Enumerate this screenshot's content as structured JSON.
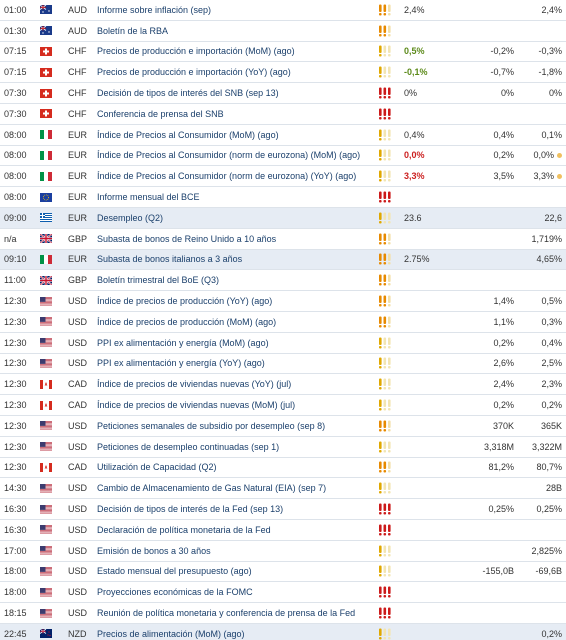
{
  "colors": {
    "event_link": "#1a3f6b",
    "highlight_row": "#e6ecf4",
    "positive": "#5c8a1a",
    "negative": "#cc2020",
    "impact_high": "#cc1a1a",
    "impact_medium": "#e78a00",
    "impact_low": "#e0a800"
  },
  "rows": [
    {
      "time": "01:00",
      "flag": "au",
      "currency": "AUD",
      "event": "Informe sobre inflación (sep)",
      "impact": "medium",
      "actual": "2,4%",
      "actual_style": "",
      "forecast": "",
      "previous": "2,4%",
      "prev_dot": false,
      "hl": false
    },
    {
      "time": "01:30",
      "flag": "au",
      "currency": "AUD",
      "event": "Boletín de la RBA",
      "impact": "medium",
      "actual": "",
      "actual_style": "",
      "forecast": "",
      "previous": "",
      "prev_dot": false,
      "hl": false
    },
    {
      "time": "07:15",
      "flag": "ch",
      "currency": "CHF",
      "event": "Precios de producción e importación (MoM) (ago)",
      "impact": "low",
      "actual": "0,5%",
      "actual_style": "pos",
      "forecast": "-0,2%",
      "previous": "-0,3%",
      "prev_dot": false,
      "hl": false
    },
    {
      "time": "07:15",
      "flag": "ch",
      "currency": "CHF",
      "event": "Precios de producción e importación (YoY) (ago)",
      "impact": "low",
      "actual": "-0,1%",
      "actual_style": "pos",
      "forecast": "-0,7%",
      "previous": "-1,8%",
      "prev_dot": false,
      "hl": false
    },
    {
      "time": "07:30",
      "flag": "ch",
      "currency": "CHF",
      "event": "Decisión de tipos de interés del SNB (sep 13)",
      "impact": "high",
      "actual": "0%",
      "actual_style": "",
      "forecast": "0%",
      "previous": "0%",
      "prev_dot": false,
      "hl": false
    },
    {
      "time": "07:30",
      "flag": "ch",
      "currency": "CHF",
      "event": "Conferencia de prensa del SNB",
      "impact": "high",
      "actual": "",
      "actual_style": "",
      "forecast": "",
      "previous": "",
      "prev_dot": false,
      "hl": false
    },
    {
      "time": "08:00",
      "flag": "it",
      "currency": "EUR",
      "event": "Índice de Precios al Consumidor (MoM) (ago)",
      "impact": "low",
      "actual": "0,4%",
      "actual_style": "",
      "forecast": "0,4%",
      "previous": "0,1%",
      "prev_dot": false,
      "hl": false
    },
    {
      "time": "08:00",
      "flag": "it",
      "currency": "EUR",
      "event": "Índice de Precios al Consumidor (norm de eurozona) (MoM) (ago)",
      "impact": "low",
      "actual": "0,0%",
      "actual_style": "neg",
      "forecast": "0,2%",
      "previous": "0,0%",
      "prev_dot": true,
      "hl": false
    },
    {
      "time": "08:00",
      "flag": "it",
      "currency": "EUR",
      "event": "Índice de Precios al Consumidor (norm de eurozona) (YoY) (ago)",
      "impact": "low",
      "actual": "3,3%",
      "actual_style": "neg",
      "forecast": "3,5%",
      "previous": "3,3%",
      "prev_dot": true,
      "hl": false
    },
    {
      "time": "08:00",
      "flag": "eu",
      "currency": "EUR",
      "event": "Informe mensual del BCE",
      "impact": "high",
      "actual": "",
      "actual_style": "",
      "forecast": "",
      "previous": "",
      "prev_dot": false,
      "hl": false
    },
    {
      "time": "09:00",
      "flag": "gr",
      "currency": "EUR",
      "event": "Desempleo (Q2)",
      "impact": "low",
      "actual": "23.6",
      "actual_style": "",
      "forecast": "",
      "previous": "22,6",
      "prev_dot": false,
      "hl": true
    },
    {
      "time": "n/a",
      "flag": "gb",
      "currency": "GBP",
      "event": "Subasta de bonos de Reino Unido a 10 años",
      "impact": "medium",
      "actual": "",
      "actual_style": "",
      "forecast": "",
      "previous": "1,719%",
      "prev_dot": false,
      "hl": false
    },
    {
      "time": "09:10",
      "flag": "it",
      "currency": "EUR",
      "event": "Subasta de bonos italianos a 3 años",
      "impact": "medium",
      "actual": "2.75%",
      "actual_style": "",
      "forecast": "",
      "previous": "4,65%",
      "prev_dot": false,
      "hl": true
    },
    {
      "time": "11:00",
      "flag": "gb",
      "currency": "GBP",
      "event": "Boletín trimestral del BoE (Q3)",
      "impact": "medium",
      "actual": "",
      "actual_style": "",
      "forecast": "",
      "previous": "",
      "prev_dot": false,
      "hl": false
    },
    {
      "time": "12:30",
      "flag": "us",
      "currency": "USD",
      "event": "Índice de precios de producción (YoY) (ago)",
      "impact": "medium",
      "actual": "",
      "actual_style": "",
      "forecast": "1,4%",
      "previous": "0,5%",
      "prev_dot": false,
      "hl": false
    },
    {
      "time": "12:30",
      "flag": "us",
      "currency": "USD",
      "event": "Índice de precios de producción (MoM) (ago)",
      "impact": "medium",
      "actual": "",
      "actual_style": "",
      "forecast": "1,1%",
      "previous": "0,3%",
      "prev_dot": false,
      "hl": false
    },
    {
      "time": "12:30",
      "flag": "us",
      "currency": "USD",
      "event": "PPI ex alimentación y energía (MoM) (ago)",
      "impact": "low",
      "actual": "",
      "actual_style": "",
      "forecast": "0,2%",
      "previous": "0,4%",
      "prev_dot": false,
      "hl": false
    },
    {
      "time": "12:30",
      "flag": "us",
      "currency": "USD",
      "event": "PPI ex alimentación y energía (YoY) (ago)",
      "impact": "low",
      "actual": "",
      "actual_style": "",
      "forecast": "2,6%",
      "previous": "2,5%",
      "prev_dot": false,
      "hl": false
    },
    {
      "time": "12:30",
      "flag": "ca",
      "currency": "CAD",
      "event": "Índice de precios de viviendas nuevas (YoY) (jul)",
      "impact": "low",
      "actual": "",
      "actual_style": "",
      "forecast": "2,4%",
      "previous": "2,3%",
      "prev_dot": false,
      "hl": false
    },
    {
      "time": "12:30",
      "flag": "ca",
      "currency": "CAD",
      "event": "Índice de precios de viviendas nuevas (MoM) (jul)",
      "impact": "low",
      "actual": "",
      "actual_style": "",
      "forecast": "0,2%",
      "previous": "0,2%",
      "prev_dot": false,
      "hl": false
    },
    {
      "time": "12:30",
      "flag": "us",
      "currency": "USD",
      "event": "Peticiones semanales de subsidio por desempleo (sep 8)",
      "impact": "medium",
      "actual": "",
      "actual_style": "",
      "forecast": "370K",
      "previous": "365K",
      "prev_dot": false,
      "hl": false
    },
    {
      "time": "12:30",
      "flag": "us",
      "currency": "USD",
      "event": "Peticiones de desempleo continuadas (sep 1)",
      "impact": "low",
      "actual": "",
      "actual_style": "",
      "forecast": "3,318M",
      "previous": "3,322M",
      "prev_dot": false,
      "hl": false
    },
    {
      "time": "12:30",
      "flag": "ca",
      "currency": "CAD",
      "event": "Utilización de Capacidad (Q2)",
      "impact": "medium",
      "actual": "",
      "actual_style": "",
      "forecast": "81,2%",
      "previous": "80,7%",
      "prev_dot": false,
      "hl": false
    },
    {
      "time": "14:30",
      "flag": "us",
      "currency": "USD",
      "event": "Cambio de Almacenamiento de Gas Natural (EIA) (sep 7)",
      "impact": "low",
      "actual": "",
      "actual_style": "",
      "forecast": "",
      "previous": "28B",
      "prev_dot": false,
      "hl": false
    },
    {
      "time": "16:30",
      "flag": "us",
      "currency": "USD",
      "event": "Decisión de tipos de interés de la Fed (sep 13)",
      "impact": "high",
      "actual": "",
      "actual_style": "",
      "forecast": "0,25%",
      "previous": "0,25%",
      "prev_dot": false,
      "hl": false
    },
    {
      "time": "16:30",
      "flag": "us",
      "currency": "USD",
      "event": "Declaración de política monetaria de la Fed",
      "impact": "high",
      "actual": "",
      "actual_style": "",
      "forecast": "",
      "previous": "",
      "prev_dot": false,
      "hl": false
    },
    {
      "time": "17:00",
      "flag": "us",
      "currency": "USD",
      "event": "Emisión de bonos a 30 años",
      "impact": "low",
      "actual": "",
      "actual_style": "",
      "forecast": "",
      "previous": "2,825%",
      "prev_dot": false,
      "hl": false
    },
    {
      "time": "18:00",
      "flag": "us",
      "currency": "USD",
      "event": "Estado mensual del presupuesto (ago)",
      "impact": "low",
      "actual": "",
      "actual_style": "",
      "forecast": "-155,0B",
      "previous": "-69,6B",
      "prev_dot": false,
      "hl": false
    },
    {
      "time": "18:00",
      "flag": "us",
      "currency": "USD",
      "event": "Proyecciones económicas de la FOMC",
      "impact": "high",
      "actual": "",
      "actual_style": "",
      "forecast": "",
      "previous": "",
      "prev_dot": false,
      "hl": false
    },
    {
      "time": "18:15",
      "flag": "us",
      "currency": "USD",
      "event": "Reunión de política monetaria y conferencia de prensa de la Fed",
      "impact": "high",
      "actual": "",
      "actual_style": "",
      "forecast": "",
      "previous": "",
      "prev_dot": false,
      "hl": false
    },
    {
      "time": "22:45",
      "flag": "nz",
      "currency": "NZD",
      "event": "Precios de alimentación (MoM) (ago)",
      "impact": "low",
      "actual": "",
      "actual_style": "",
      "forecast": "",
      "previous": "0,2%",
      "prev_dot": false,
      "hl": true
    }
  ]
}
